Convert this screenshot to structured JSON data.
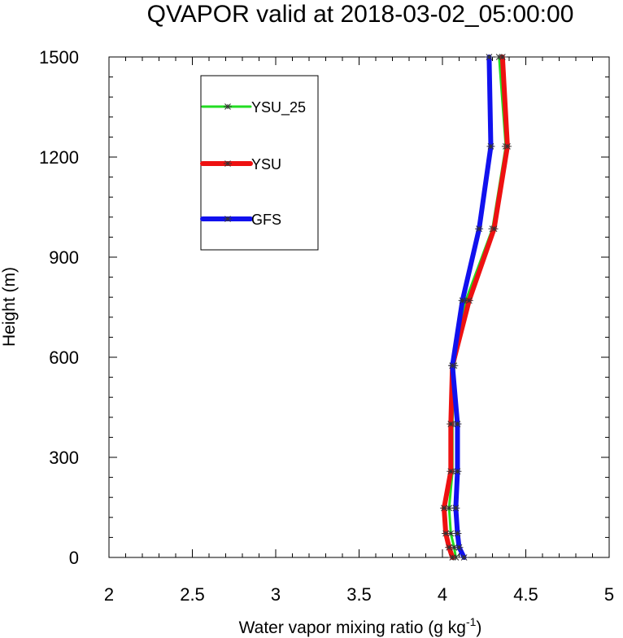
{
  "chart_data": {
    "type": "line",
    "title": "QVAPOR valid at 2018-03-02_05:00:00",
    "xlabel": "Water vapor mixing ratio (g kg",
    "xlabel_sup": "-1",
    "xlabel_close": ")",
    "ylabel": "Height (m)",
    "xlim": [
      2,
      5
    ],
    "ylim": [
      0,
      1500
    ],
    "xticks": [
      2,
      2.5,
      3,
      3.5,
      4,
      4.5,
      5
    ],
    "xtick_labels": [
      "2",
      "2.5",
      "3",
      "3.5",
      "4",
      "4.5",
      "5"
    ],
    "yticks": [
      0,
      300,
      600,
      900,
      1200,
      1500
    ],
    "ytick_labels": [
      "0",
      "300",
      "600",
      "900",
      "1200",
      "1500"
    ],
    "grid": false,
    "legend_position": "top-left",
    "series": [
      {
        "name": "YSU_25",
        "color": "#22dd22",
        "linewidth": "thin",
        "marker": "asterisk",
        "points": [
          [
            4.08,
            0
          ],
          [
            4.07,
            30
          ],
          [
            4.05,
            72
          ],
          [
            4.04,
            148
          ],
          [
            4.06,
            258
          ],
          [
            4.06,
            400
          ],
          [
            4.07,
            575
          ],
          [
            4.14,
            770
          ],
          [
            4.3,
            985
          ],
          [
            4.38,
            1232
          ],
          [
            4.34,
            1500
          ]
        ]
      },
      {
        "name": "YSU",
        "color": "#ee1111",
        "linewidth": "thick",
        "marker": "asterisk",
        "points": [
          [
            4.06,
            0
          ],
          [
            4.04,
            30
          ],
          [
            4.02,
            72
          ],
          [
            4.01,
            148
          ],
          [
            4.05,
            258
          ],
          [
            4.05,
            400
          ],
          [
            4.06,
            575
          ],
          [
            4.16,
            770
          ],
          [
            4.31,
            985
          ],
          [
            4.39,
            1232
          ],
          [
            4.36,
            1500
          ]
        ]
      },
      {
        "name": "GFS",
        "color": "#1111ee",
        "linewidth": "thick",
        "marker": "asterisk",
        "points": [
          [
            4.13,
            0
          ],
          [
            4.1,
            30
          ],
          [
            4.09,
            72
          ],
          [
            4.08,
            148
          ],
          [
            4.09,
            258
          ],
          [
            4.09,
            400
          ],
          [
            4.06,
            575
          ],
          [
            4.12,
            770
          ],
          [
            4.22,
            985
          ],
          [
            4.29,
            1232
          ],
          [
            4.28,
            1500
          ]
        ]
      }
    ]
  }
}
